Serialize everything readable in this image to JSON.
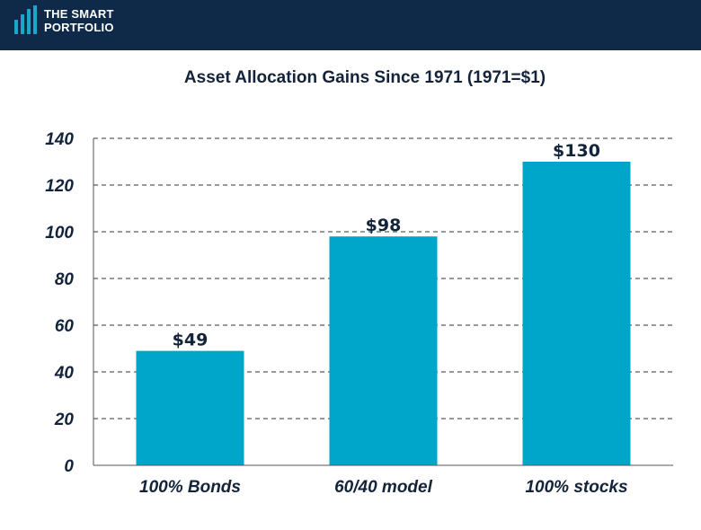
{
  "brand": {
    "line1": "THE SMART",
    "line2": "PORTFOLIO",
    "background_color": "#0e2a48",
    "mark_color": "#1aa7c8"
  },
  "chart_data": {
    "type": "bar",
    "title": "Asset Allocation Gains Since 1971 (1971=$1)",
    "xlabel": "",
    "ylabel": "",
    "categories": [
      "100% Bonds",
      "60/40 model",
      "100% stocks"
    ],
    "values": [
      49,
      98,
      130
    ],
    "data_labels": [
      "$49",
      "$98",
      "$130"
    ],
    "ylim": [
      0,
      140
    ],
    "yticks": [
      0,
      20,
      40,
      60,
      80,
      100,
      120,
      140
    ],
    "ytick_labels": [
      "0",
      "20",
      "40",
      "60",
      "80",
      "100",
      "120",
      "140"
    ],
    "grid": "horizontal dashed",
    "bar_color": "#00a6c9",
    "text_color": "#12233a"
  }
}
